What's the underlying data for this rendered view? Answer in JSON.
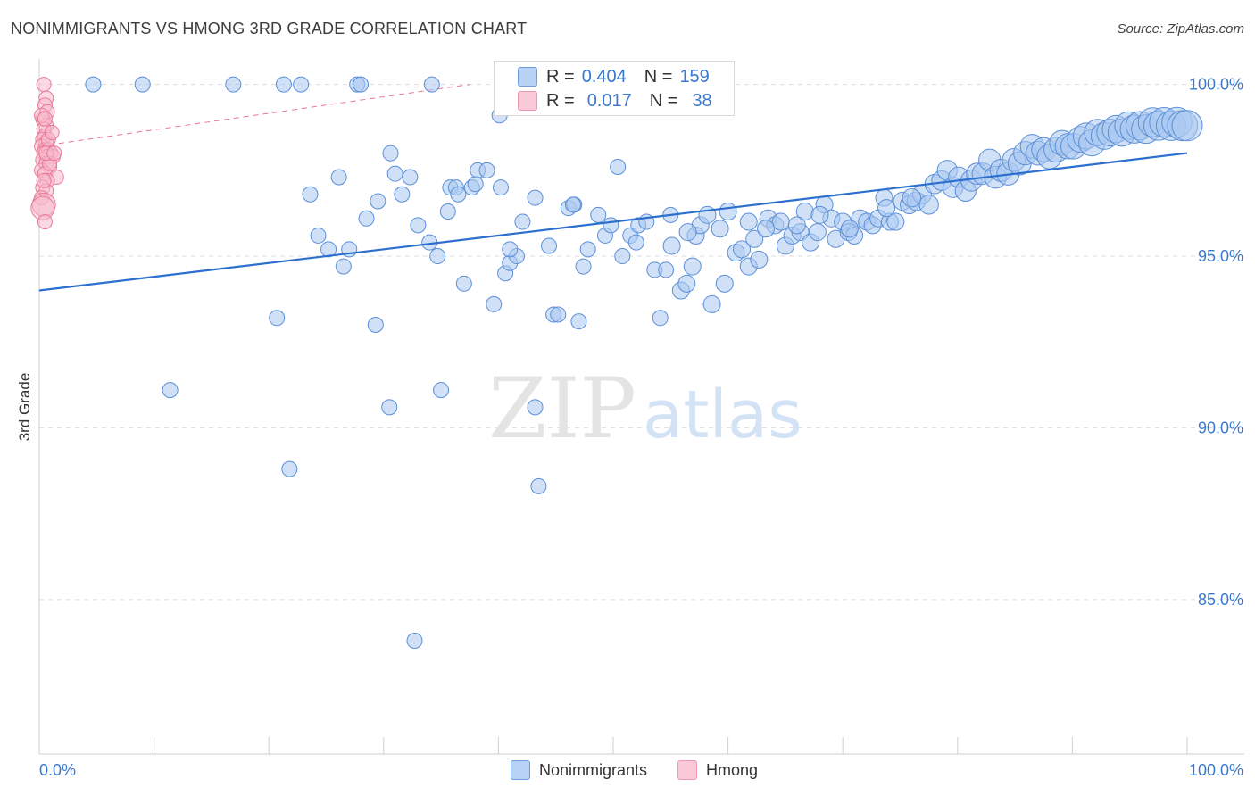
{
  "title": "NONIMMIGRANTS VS HMONG 3RD GRADE CORRELATION CHART",
  "source": "Source: ZipAtlas.com",
  "watermark": {
    "zip": "ZIP",
    "atlas": "atlas"
  },
  "colors": {
    "blue_fill": "#a9c8f0",
    "blue_stroke": "#5b8fd8",
    "blue_line": "#2c6fce",
    "pink_fill": "#f6b9cb",
    "pink_stroke": "#e87a9b",
    "pink_line": "#e0557f",
    "axis_text": "#3a78d0",
    "grid": "#dcdcdc"
  },
  "legend": {
    "rows": [
      {
        "r_label": "R =",
        "r_value": "0.404",
        "n_label": "N =",
        "n_value": "159"
      },
      {
        "r_label": "R =",
        "r_value": "0.017",
        "n_label": "N =",
        "n_value": "38"
      }
    ]
  },
  "bottom_legend": [
    {
      "label": "Nonimmigrants"
    },
    {
      "label": "Hmong"
    }
  ],
  "chart_data": {
    "type": "scatter",
    "title": "NONIMMIGRANTS VS HMONG 3RD GRADE CORRELATION CHART",
    "xlabel": "",
    "ylabel": "3rd Grade",
    "xlim": [
      0,
      100
    ],
    "ylim": [
      80.5,
      100.9
    ],
    "x_tick_labels": [
      "0.0%",
      "100.0%"
    ],
    "y_ticks": [
      {
        "value": 100,
        "label": "100.0%"
      },
      {
        "value": 95,
        "label": "95.0%"
      },
      {
        "value": 90,
        "label": "90.0%"
      },
      {
        "value": 85,
        "label": "85.0%"
      }
    ],
    "series": [
      {
        "name": "Nonimmigrants",
        "color": "#a9c8f0",
        "r": 0.404,
        "n": 159,
        "trend": {
          "x": [
            0,
            100
          ],
          "y": [
            94.0,
            98.0
          ]
        },
        "points": [
          [
            4.7,
            100
          ],
          [
            9.0,
            100
          ],
          [
            16.9,
            100
          ],
          [
            21.3,
            100
          ],
          [
            22.8,
            100
          ],
          [
            27.7,
            100
          ],
          [
            28.0,
            100
          ],
          [
            34.2,
            100
          ],
          [
            40.1,
            99.1
          ],
          [
            23.6,
            96.8
          ],
          [
            26.1,
            97.3
          ],
          [
            29.5,
            96.6
          ],
          [
            28.5,
            96.1
          ],
          [
            30.6,
            98.0
          ],
          [
            31.0,
            97.4
          ],
          [
            32.3,
            97.3
          ],
          [
            31.6,
            96.8
          ],
          [
            24.3,
            95.6
          ],
          [
            25.2,
            95.2
          ],
          [
            26.5,
            94.7
          ],
          [
            27.0,
            95.2
          ],
          [
            33.0,
            95.9
          ],
          [
            34.0,
            95.4
          ],
          [
            34.7,
            95.0
          ],
          [
            35.6,
            96.3
          ],
          [
            35.8,
            97.0
          ],
          [
            36.3,
            97.0
          ],
          [
            37.7,
            97.0
          ],
          [
            38.0,
            97.1
          ],
          [
            38.2,
            97.5
          ],
          [
            39.0,
            97.5
          ],
          [
            37.0,
            94.2
          ],
          [
            39.6,
            93.6
          ],
          [
            40.6,
            94.5
          ],
          [
            41.0,
            94.8
          ],
          [
            41.6,
            95.0
          ],
          [
            42.1,
            96.0
          ],
          [
            43.2,
            96.7
          ],
          [
            44.4,
            95.3
          ],
          [
            44.8,
            93.3
          ],
          [
            45.2,
            93.3
          ],
          [
            46.1,
            96.4
          ],
          [
            46.6,
            96.5
          ],
          [
            47.0,
            93.1
          ],
          [
            47.4,
            94.7
          ],
          [
            47.8,
            95.2
          ],
          [
            48.7,
            96.2
          ],
          [
            49.3,
            95.6
          ],
          [
            49.8,
            95.9
          ],
          [
            50.4,
            97.6
          ],
          [
            50.8,
            95.0
          ],
          [
            51.5,
            95.6
          ],
          [
            52.0,
            95.4
          ],
          [
            52.2,
            95.9
          ],
          [
            53.6,
            94.6
          ],
          [
            54.1,
            93.2
          ],
          [
            54.6,
            94.6
          ],
          [
            55.1,
            95.3
          ],
          [
            55.9,
            94.0
          ],
          [
            56.4,
            94.2
          ],
          [
            56.9,
            94.7
          ],
          [
            57.2,
            95.6
          ],
          [
            57.6,
            95.9
          ],
          [
            58.2,
            96.2
          ],
          [
            58.6,
            93.6
          ],
          [
            59.3,
            95.8
          ],
          [
            59.7,
            94.2
          ],
          [
            60.7,
            95.1
          ],
          [
            61.2,
            95.2
          ],
          [
            61.8,
            94.7
          ],
          [
            62.3,
            95.5
          ],
          [
            62.7,
            94.9
          ],
          [
            63.5,
            96.1
          ],
          [
            64.1,
            95.9
          ],
          [
            64.6,
            96.0
          ],
          [
            65.0,
            95.3
          ],
          [
            65.6,
            95.6
          ],
          [
            66.3,
            95.7
          ],
          [
            66.7,
            96.3
          ],
          [
            67.2,
            95.4
          ],
          [
            67.8,
            95.7
          ],
          [
            68.4,
            96.5
          ],
          [
            69.0,
            96.1
          ],
          [
            69.4,
            95.5
          ],
          [
            70.0,
            96.0
          ],
          [
            70.5,
            95.7
          ],
          [
            71.0,
            95.6
          ],
          [
            71.5,
            96.1
          ],
          [
            72.1,
            96.0
          ],
          [
            72.6,
            95.9
          ],
          [
            73.1,
            96.1
          ],
          [
            73.6,
            96.7
          ],
          [
            74.1,
            96.0
          ],
          [
            74.6,
            96.0
          ],
          [
            75.2,
            96.6
          ],
          [
            75.8,
            96.5
          ],
          [
            76.4,
            96.6
          ],
          [
            76.9,
            96.8
          ],
          [
            77.5,
            96.5
          ],
          [
            78.0,
            97.1
          ],
          [
            78.6,
            97.2
          ],
          [
            79.1,
            97.5
          ],
          [
            79.6,
            97.0
          ],
          [
            80.1,
            97.3
          ],
          [
            80.7,
            96.9
          ],
          [
            81.2,
            97.2
          ],
          [
            81.7,
            97.4
          ],
          [
            82.2,
            97.4
          ],
          [
            82.8,
            97.8
          ],
          [
            83.3,
            97.3
          ],
          [
            83.8,
            97.5
          ],
          [
            84.4,
            97.4
          ],
          [
            84.9,
            97.8
          ],
          [
            85.4,
            97.7
          ],
          [
            85.9,
            98.0
          ],
          [
            86.5,
            98.2
          ],
          [
            87.0,
            98.0
          ],
          [
            87.5,
            98.1
          ],
          [
            88.0,
            97.9
          ],
          [
            88.6,
            98.1
          ],
          [
            89.1,
            98.3
          ],
          [
            89.6,
            98.2
          ],
          [
            90.1,
            98.2
          ],
          [
            90.7,
            98.4
          ],
          [
            91.2,
            98.5
          ],
          [
            91.7,
            98.3
          ],
          [
            92.2,
            98.6
          ],
          [
            92.8,
            98.5
          ],
          [
            93.3,
            98.6
          ],
          [
            93.8,
            98.7
          ],
          [
            94.3,
            98.6
          ],
          [
            94.9,
            98.8
          ],
          [
            95.4,
            98.7
          ],
          [
            95.9,
            98.8
          ],
          [
            96.4,
            98.7
          ],
          [
            97.0,
            98.9
          ],
          [
            97.5,
            98.8
          ],
          [
            98.0,
            98.9
          ],
          [
            98.6,
            98.8
          ],
          [
            99.1,
            98.9
          ],
          [
            99.6,
            98.8
          ],
          [
            100.0,
            98.8
          ],
          [
            20.7,
            93.2
          ],
          [
            29.3,
            93.0
          ],
          [
            11.4,
            91.1
          ],
          [
            30.5,
            90.6
          ],
          [
            35.0,
            91.1
          ],
          [
            43.2,
            90.6
          ],
          [
            21.8,
            88.8
          ],
          [
            43.5,
            88.3
          ],
          [
            32.7,
            83.8
          ],
          [
            46.5,
            96.5
          ],
          [
            40.2,
            97.0
          ],
          [
            36.5,
            96.8
          ],
          [
            41.0,
            95.2
          ],
          [
            52.9,
            96.0
          ],
          [
            56.5,
            95.7
          ],
          [
            55.0,
            96.2
          ],
          [
            60.0,
            96.3
          ],
          [
            61.8,
            96.0
          ],
          [
            63.3,
            95.8
          ],
          [
            66.0,
            95.9
          ],
          [
            68.0,
            96.2
          ],
          [
            70.6,
            95.8
          ],
          [
            73.8,
            96.4
          ],
          [
            76.0,
            96.7
          ]
        ]
      },
      {
        "name": "Hmong",
        "color": "#f6b9cb",
        "r": 0.017,
        "n": 38,
        "trend": {
          "x": [
            0,
            37.5
          ],
          "y": [
            98.2,
            100.0
          ]
        },
        "points": [
          [
            0.4,
            100
          ],
          [
            0.6,
            99.6
          ],
          [
            0.5,
            99.4
          ],
          [
            0.7,
            99.2
          ],
          [
            0.3,
            99.0
          ],
          [
            0.6,
            98.8
          ],
          [
            0.4,
            98.7
          ],
          [
            0.5,
            98.5
          ],
          [
            0.3,
            98.4
          ],
          [
            0.6,
            98.3
          ],
          [
            0.2,
            98.2
          ],
          [
            0.5,
            98.1
          ],
          [
            0.8,
            98.1
          ],
          [
            1.0,
            98.0
          ],
          [
            0.4,
            98.0
          ],
          [
            0.7,
            97.9
          ],
          [
            1.2,
            97.9
          ],
          [
            0.3,
            97.8
          ],
          [
            0.6,
            97.7
          ],
          [
            0.9,
            97.6
          ],
          [
            0.2,
            97.5
          ],
          [
            0.5,
            97.4
          ],
          [
            1.5,
            97.3
          ],
          [
            0.7,
            97.2
          ],
          [
            0.3,
            97.0
          ],
          [
            0.6,
            96.9
          ],
          [
            0.2,
            96.7
          ],
          [
            0.4,
            96.5
          ],
          [
            0.3,
            96.4
          ],
          [
            0.5,
            96.0
          ],
          [
            0.8,
            98.4
          ],
          [
            1.1,
            98.6
          ],
          [
            0.2,
            99.1
          ],
          [
            0.9,
            97.7
          ],
          [
            0.4,
            97.2
          ],
          [
            0.6,
            98.0
          ],
          [
            1.3,
            98.0
          ],
          [
            0.5,
            99.0
          ]
        ]
      }
    ]
  }
}
